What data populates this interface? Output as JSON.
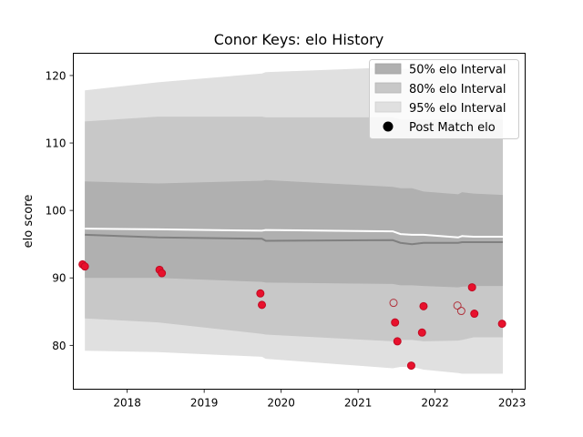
{
  "chart_data": {
    "type": "line",
    "title": "Conor Keys: elo History",
    "xlabel": "",
    "ylabel": "elo score",
    "xlim": [
      2017.3,
      2023.17
    ],
    "ylim": [
      73.5,
      123.3
    ],
    "xticks": [
      2018,
      2019,
      2020,
      2021,
      2022,
      2023
    ],
    "yticks": [
      80,
      90,
      100,
      110,
      120
    ],
    "grid": false,
    "legend_position": "top-right",
    "legend": [
      {
        "label": "50% elo Interval",
        "color": "#b0b0b0",
        "kind": "patch"
      },
      {
        "label": "80% elo Interval",
        "color": "#c8c8c8",
        "kind": "patch"
      },
      {
        "label": "95% elo Interval",
        "color": "#e0e0e0",
        "kind": "patch"
      },
      {
        "label": "Post Match elo",
        "color": "#000000",
        "kind": "marker"
      }
    ],
    "time_x": [
      2017.45,
      2018.4,
      2019.75,
      2019.8,
      2021.45,
      2021.55,
      2021.7,
      2021.85,
      2022.3,
      2022.35,
      2022.5,
      2022.88
    ],
    "bands": {
      "interval_95": {
        "lower": [
          79.2,
          79.0,
          78.3,
          78.0,
          76.6,
          76.8,
          76.8,
          76.4,
          75.9,
          75.8,
          75.8,
          75.8
        ],
        "upper": [
          117.8,
          119.0,
          120.3,
          120.5,
          121.2,
          121.0,
          121.0,
          121.0,
          121.0,
          121.0,
          121.0,
          121.0
        ],
        "color": "#e0e0e0"
      },
      "interval_80": {
        "lower": [
          84.0,
          83.4,
          81.7,
          81.6,
          80.6,
          80.8,
          80.8,
          80.6,
          80.7,
          80.8,
          81.2,
          81.2
        ],
        "upper": [
          113.2,
          113.9,
          113.9,
          113.8,
          113.8,
          113.5,
          113.5,
          113.5,
          113.5,
          113.5,
          113.5,
          113.5
        ],
        "color": "#c8c8c8"
      },
      "interval_50": {
        "lower": [
          90.0,
          90.0,
          89.4,
          89.3,
          89.1,
          88.9,
          88.9,
          88.8,
          88.6,
          88.7,
          88.8,
          88.8
        ],
        "upper": [
          104.3,
          104.0,
          104.4,
          104.5,
          103.5,
          103.3,
          103.3,
          102.8,
          102.4,
          102.7,
          102.5,
          102.3
        ],
        "color": "#b0b0b0"
      }
    },
    "series": [
      {
        "kind": "line",
        "color": "#ffffff",
        "x": [
          2017.45,
          2018.4,
          2019.75,
          2019.8,
          2021.45,
          2021.55,
          2021.7,
          2021.85,
          2022.3,
          2022.35,
          2022.5,
          2022.88
        ],
        "values": [
          97.3,
          97.2,
          97.0,
          97.1,
          96.9,
          96.5,
          96.4,
          96.4,
          96.0,
          96.2,
          96.1,
          96.1
        ]
      },
      {
        "kind": "line",
        "color": "#808080",
        "x": [
          2017.45,
          2018.4,
          2019.75,
          2019.8,
          2021.45,
          2021.55,
          2021.7,
          2021.85,
          2022.3,
          2022.35,
          2022.5,
          2022.88
        ],
        "values": [
          96.4,
          96.0,
          95.8,
          95.5,
          95.6,
          95.2,
          95.0,
          95.2,
          95.2,
          95.3,
          95.3,
          95.3
        ]
      }
    ],
    "points": {
      "color": "#e8112d",
      "x": [
        2017.42,
        2017.45,
        2018.42,
        2018.45,
        2019.73,
        2019.75,
        2021.48,
        2021.51,
        2021.69,
        2021.83,
        2021.85,
        2022.48,
        2022.51,
        2022.87,
        2021.46,
        2022.29,
        2022.34
      ],
      "values": [
        92.0,
        91.7,
        91.2,
        90.7,
        87.7,
        86.0,
        83.4,
        80.6,
        77.0,
        81.9,
        85.8,
        88.6,
        84.7,
        83.2,
        86.3,
        85.9,
        85.1
      ],
      "hollow": [
        false,
        false,
        false,
        false,
        false,
        false,
        false,
        false,
        false,
        false,
        false,
        false,
        false,
        false,
        true,
        true,
        true
      ]
    }
  }
}
